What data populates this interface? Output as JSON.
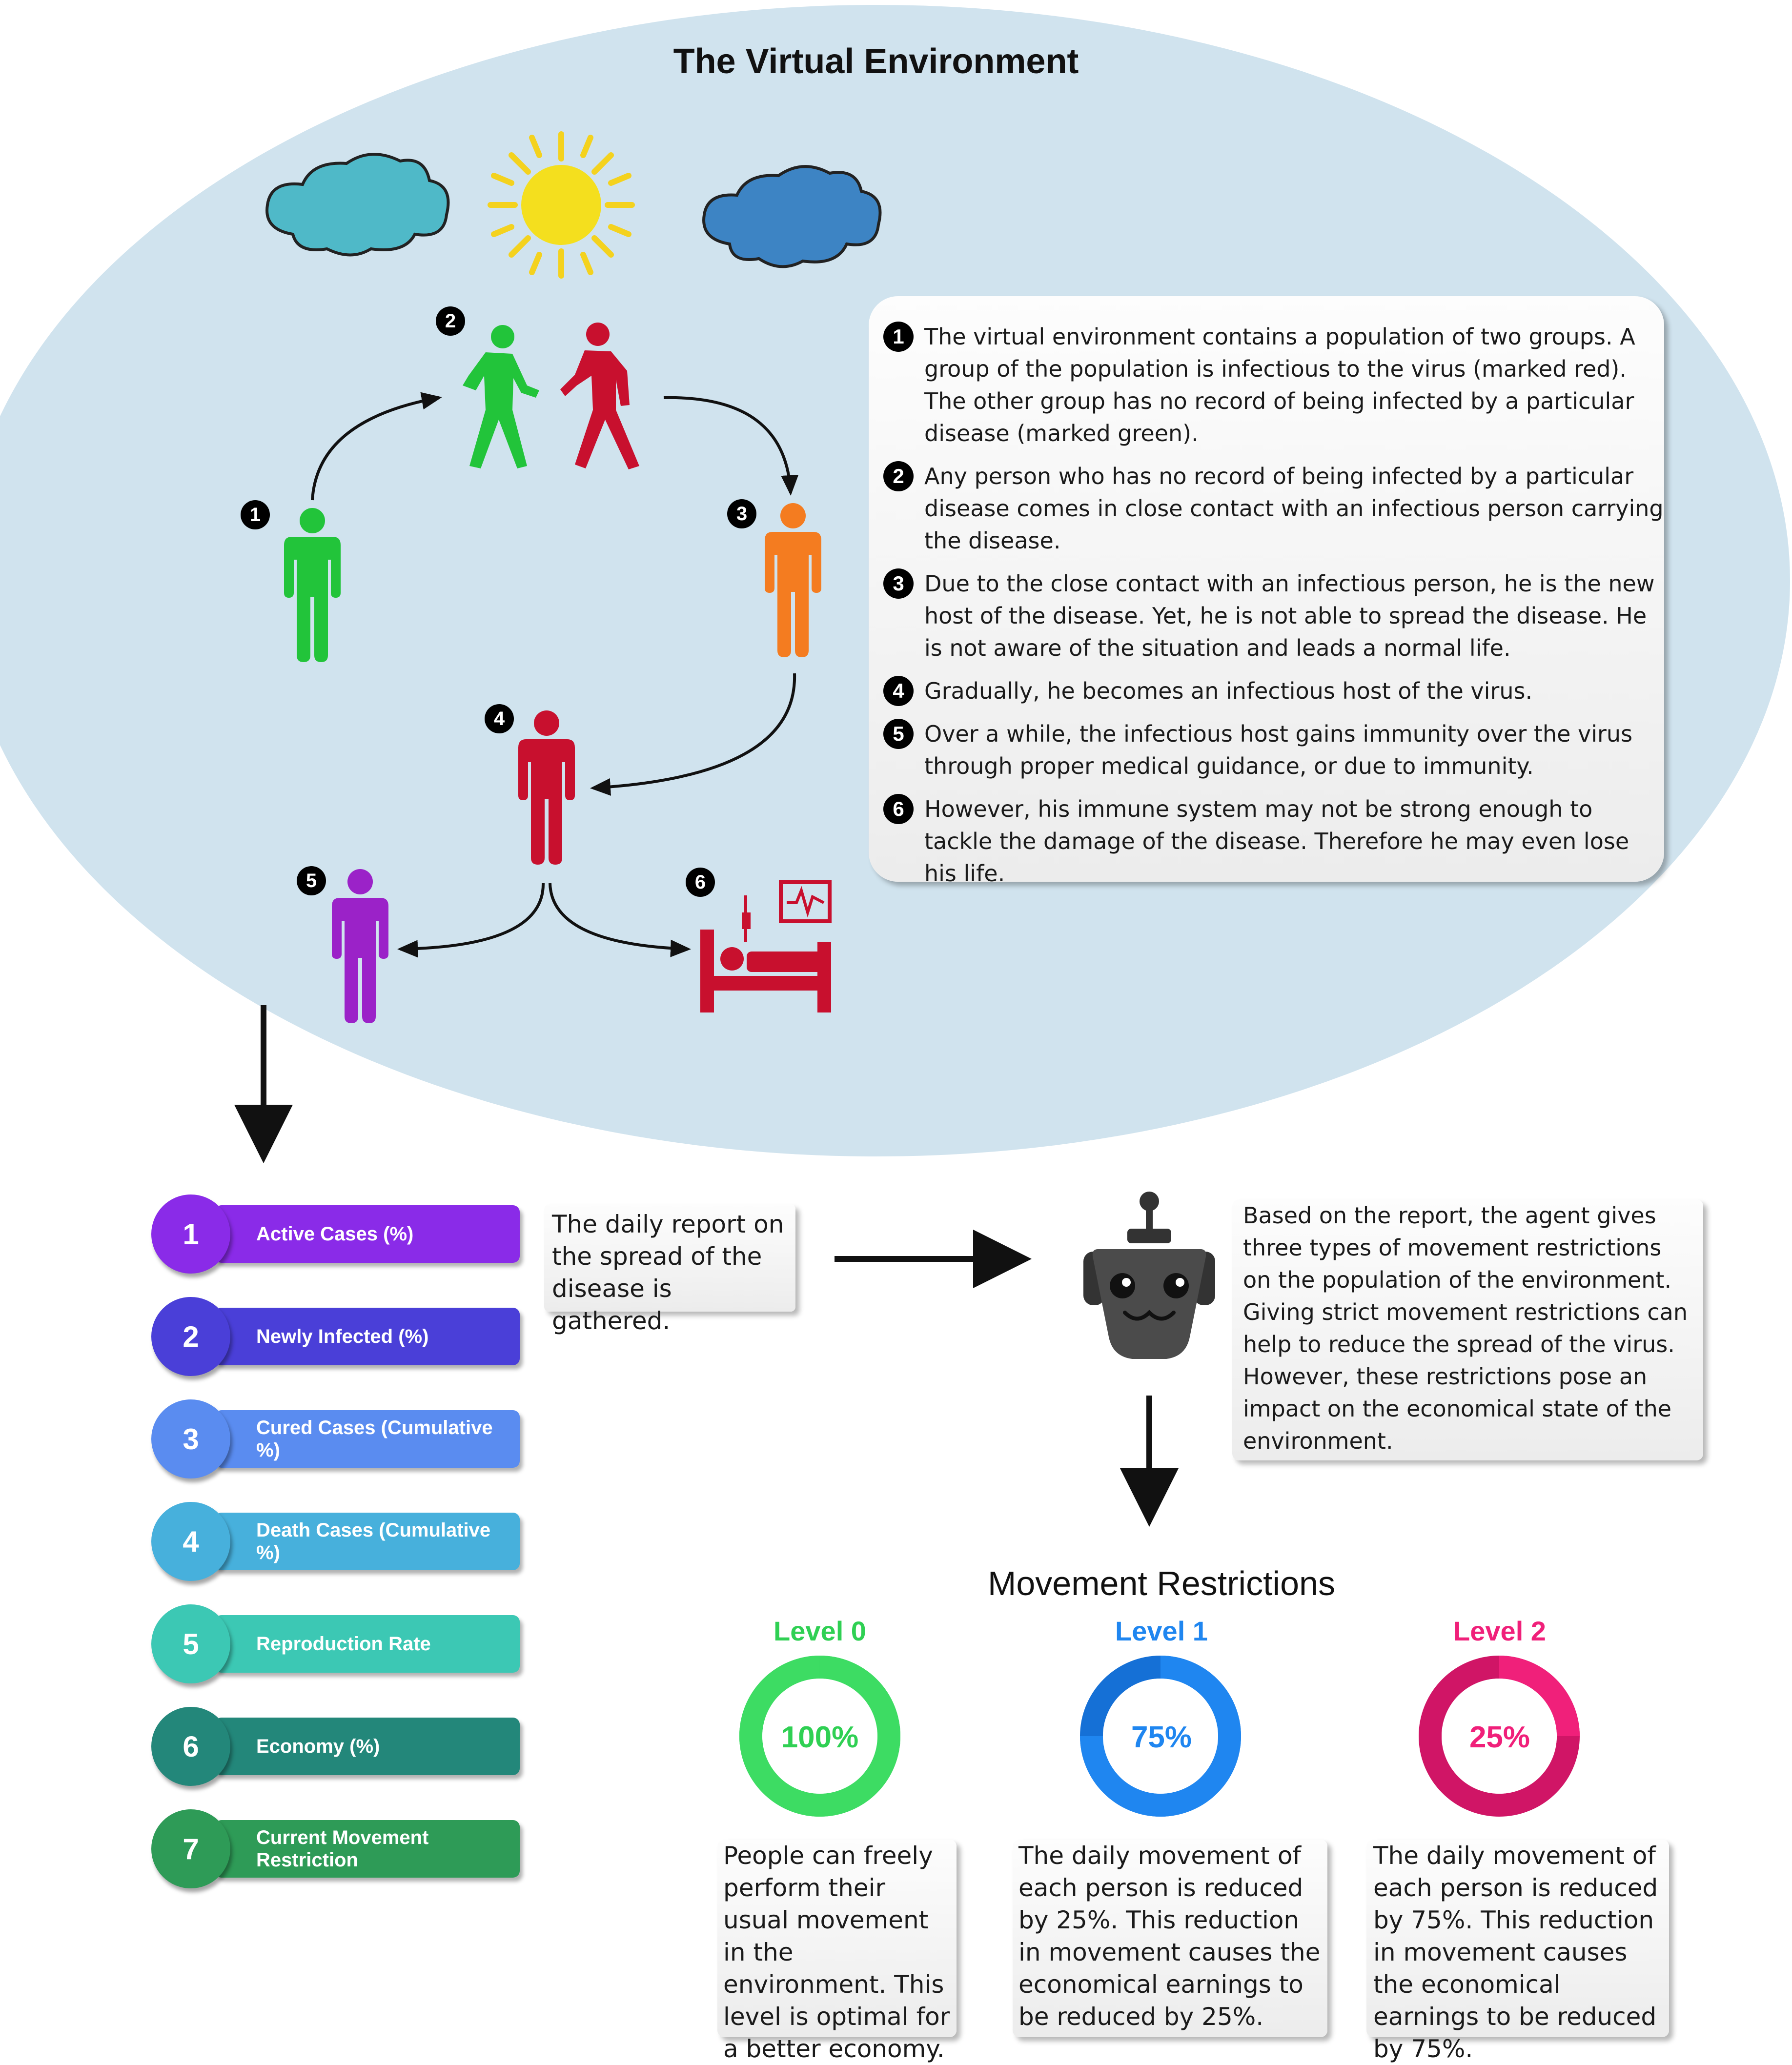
{
  "title": "The Virtual Environment",
  "colors": {
    "healthy": "#22c43a",
    "infectious": "#c8102e",
    "exposed": "#f47c20",
    "recovered": "#9b22c8",
    "sky_ellipse": "#d0e3ee"
  },
  "cycle_badges": [
    "1",
    "2",
    "3",
    "4",
    "5",
    "6"
  ],
  "description": [
    {
      "num": "1",
      "text": "The virtual environment contains a population of two groups. A group of the population is infectious to the virus (marked red). The other group has no record of being infected by a particular disease (marked green)."
    },
    {
      "num": "2",
      "text": "Any person who has no record of being infected by a particular disease comes in close contact with an infectious person carrying the disease."
    },
    {
      "num": "3",
      "text": "Due to the close contact with an infectious person, he is the new host of the disease. Yet, he is not able to spread the disease. He is not aware of the situation and leads a normal life."
    },
    {
      "num": "4",
      "text": "Gradually, he becomes an infectious host of the virus."
    },
    {
      "num": "5",
      "text": "Over a while, the infectious host gains immunity over the virus through proper medical guidance, or due to immunity."
    },
    {
      "num": "6",
      "text": "However, his immune system may not be strong enough to tackle the damage of the disease. Therefore he may even lose his life."
    }
  ],
  "metrics": [
    {
      "num": "1",
      "label": "Active Cases (%)",
      "color": "#8a2be8"
    },
    {
      "num": "2",
      "label": "Newly Infected (%)",
      "color": "#4a3fd8"
    },
    {
      "num": "3",
      "label": "Cured Cases (Cumulative %)",
      "color": "#5a8cf0"
    },
    {
      "num": "4",
      "label": "Death Cases (Cumulative %)",
      "color": "#47b0dc"
    },
    {
      "num": "5",
      "label": "Reproduction Rate",
      "color": "#3cc8b4"
    },
    {
      "num": "6",
      "label": "Economy (%)",
      "color": "#23877a"
    },
    {
      "num": "7",
      "label": "Current Movement Restriction",
      "color": "#2e9b57"
    }
  ],
  "report_text": "The daily report on the spread of the disease is gathered.",
  "agent_text": "Based on the report, the agent gives three types of movement restrictions on the population of the environment. Giving strict movement restrictions can help to reduce the spread of the virus. However, these restrictions pose an impact on the economical state of the environment.",
  "movement_title": "Movement Restrictions",
  "levels": [
    {
      "name": "Level 0",
      "percent": "100%",
      "value": 100,
      "color": "#3ddc63",
      "dark": "#2fc955",
      "text": "People can freely perform their usual movement in the environment. This level is optimal for a better economy."
    },
    {
      "name": "Level 1",
      "percent": "75%",
      "value": 75,
      "color": "#1f86f0",
      "dark": "#1570d6",
      "text": "The daily movement of each person is reduced by 25%. This reduction in movement causes the economical earnings to be reduced by 25%."
    },
    {
      "name": "Level 2",
      "percent": "25%",
      "value": 25,
      "color": "#f0207a",
      "dark": "#d01566",
      "text": "The daily movement of each person is reduced by 75%. This reduction in movement causes the economical earnings to be reduced by 75%."
    }
  ]
}
